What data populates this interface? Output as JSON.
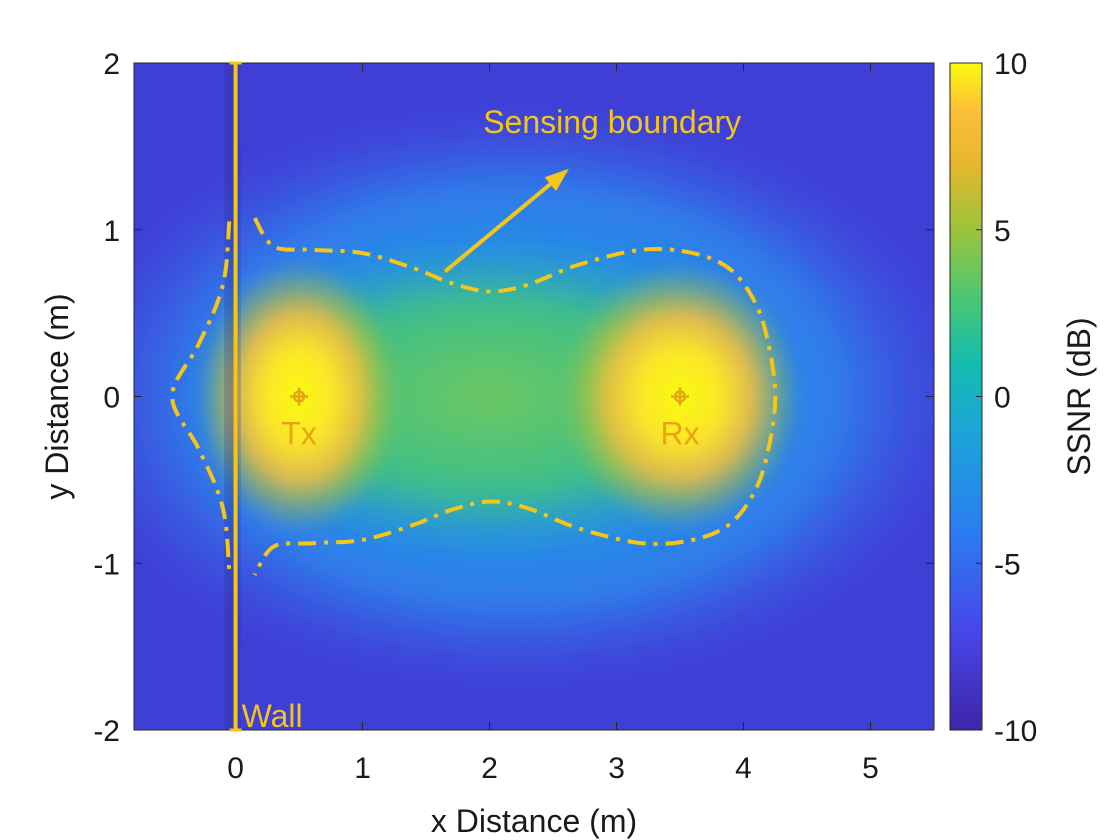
{
  "chart_data": {
    "type": "heatmap",
    "title": "",
    "xlabel": "x Distance (m)",
    "ylabel": "y Distance (m)",
    "xlim": [
      -0.8,
      5.5
    ],
    "ylim": [
      -2,
      2
    ],
    "x_ticks": [
      "0",
      "1",
      "2",
      "3",
      "4",
      "5"
    ],
    "y_ticks": [
      "-2",
      "-1",
      "0",
      "1",
      "2"
    ],
    "colorbar": {
      "label": "SSNR (dB)",
      "range": [
        -10,
        10
      ],
      "ticks": [
        "-10",
        "-5",
        "0",
        "5",
        "10"
      ],
      "colormap": "parula"
    },
    "points": [
      {
        "label": "Tx",
        "x": 0.5,
        "y": 0
      },
      {
        "label": "Rx",
        "x": 3.5,
        "y": 0
      }
    ],
    "wall": {
      "label": "Wall",
      "x": 0
    },
    "annotation": {
      "text": "Sensing boundary",
      "arrow_from": [
        1.65,
        0.75
      ],
      "arrow_to": [
        2.6,
        1.35
      ]
    },
    "boundary_upper": [
      [
        0.15,
        1.07
      ],
      [
        0.3,
        0.9
      ],
      [
        0.6,
        0.88
      ],
      [
        1.0,
        0.86
      ],
      [
        1.4,
        0.77
      ],
      [
        1.7,
        0.68
      ],
      [
        2.0,
        0.63
      ],
      [
        2.3,
        0.67
      ],
      [
        2.7,
        0.79
      ],
      [
        3.2,
        0.88
      ],
      [
        3.6,
        0.86
      ],
      [
        3.9,
        0.76
      ],
      [
        4.1,
        0.55
      ],
      [
        4.2,
        0.3
      ],
      [
        4.25,
        0
      ]
    ],
    "boundary_left": [
      [
        -0.05,
        1.05
      ],
      [
        -0.08,
        0.75
      ],
      [
        -0.15,
        0.55
      ],
      [
        -0.3,
        0.3
      ],
      [
        -0.5,
        0
      ]
    ],
    "colors": {
      "annotation": "#f5c518",
      "marker": "#e8a317"
    }
  }
}
